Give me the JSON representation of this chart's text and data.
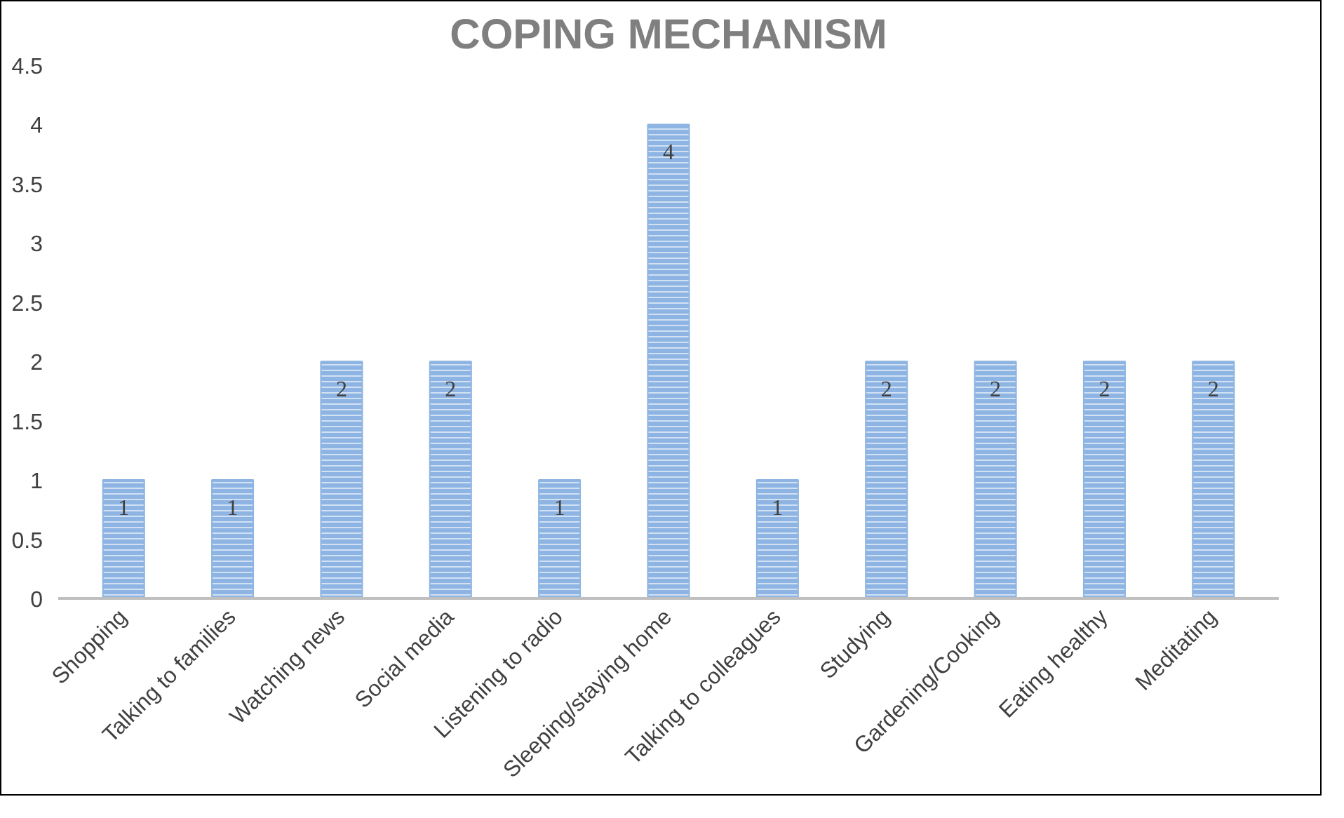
{
  "chart_data": {
    "type": "bar",
    "title": "COPING MECHANISM",
    "categories": [
      "Shopping",
      "Talking to families",
      "Watching news",
      "Social media",
      "Listening to radio",
      "Sleeping/staying home",
      "Talking to colleagues",
      "Studying",
      "Gardening/Cooking",
      "Eating healthy",
      "Meditating"
    ],
    "values": [
      1,
      1,
      2,
      2,
      1,
      4,
      1,
      2,
      2,
      2,
      2
    ],
    "color": "#8db4e2",
    "ylim": [
      0,
      4.5
    ],
    "yticks": [
      0,
      0.5,
      1,
      1.5,
      2,
      2.5,
      3,
      3.5,
      4,
      4.5
    ],
    "data_labels": true
  }
}
